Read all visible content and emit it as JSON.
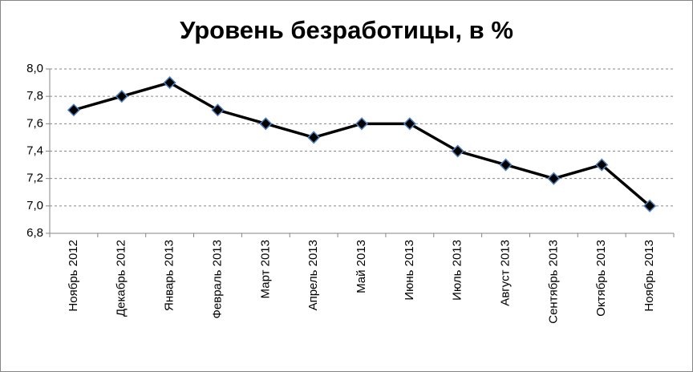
{
  "chart_data": {
    "type": "line",
    "title": "Уровень безработицы, в %",
    "categories": [
      "Ноябрь 2012",
      "Декабрь 2012",
      "Январь 2013",
      "Февраль 2013",
      "Март 2013",
      "Апрель  2013",
      "Май 2013",
      "Июнь 2013",
      "Июль 2013",
      "Август 2013",
      "Сентябрь 2013",
      "Октябрь 2013",
      "Ноябрь 2013"
    ],
    "values": [
      7.7,
      7.8,
      7.9,
      7.7,
      7.6,
      7.5,
      7.6,
      7.6,
      7.4,
      7.3,
      7.2,
      7.3,
      7.0
    ],
    "color": "#000000",
    "marker_color": "#000000",
    "marker_edge_color": "#4f81bd",
    "ylim": [
      6.8,
      8.0
    ],
    "yticks": [
      {
        "value": 6.8,
        "label": "6,8"
      },
      {
        "value": 7.0,
        "label": "7,0"
      },
      {
        "value": 7.2,
        "label": "7,2"
      },
      {
        "value": 7.4,
        "label": "7,4"
      },
      {
        "value": 7.6,
        "label": "7,6"
      },
      {
        "value": 7.8,
        "label": "7,8"
      },
      {
        "value": 8.0,
        "label": "8,0"
      }
    ],
    "grid": true
  }
}
